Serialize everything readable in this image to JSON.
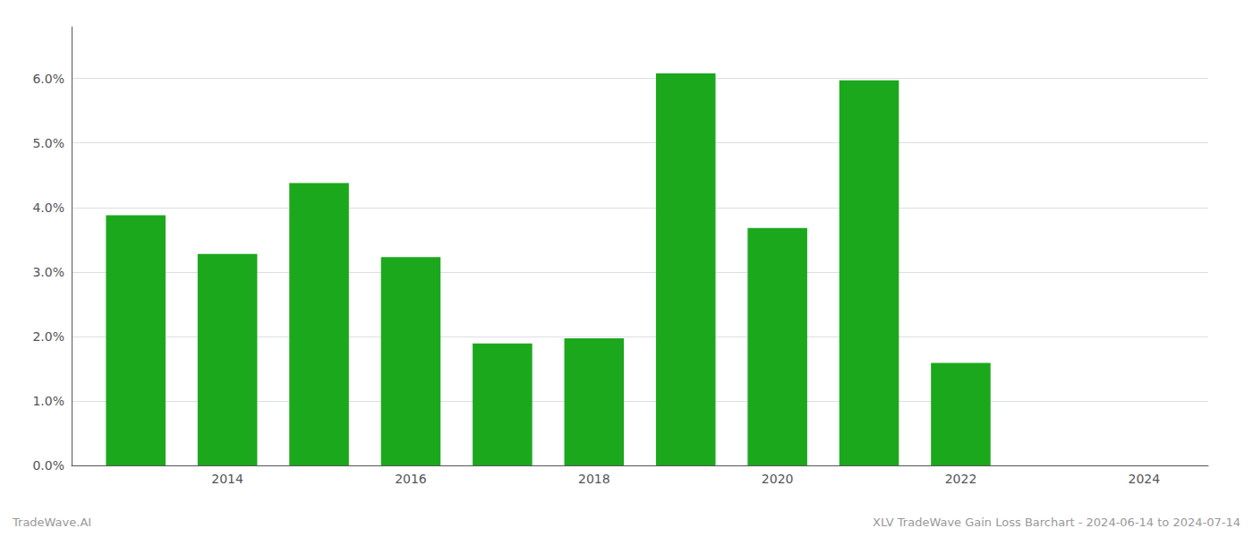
{
  "chart_data": {
    "type": "bar",
    "x": [
      2013,
      2014,
      2015,
      2016,
      2017,
      2018,
      2019,
      2020,
      2021,
      2022
    ],
    "values": [
      0.0388,
      0.0328,
      0.0438,
      0.0323,
      0.0189,
      0.0197,
      0.0608,
      0.0368,
      0.0597,
      0.0159
    ],
    "color": "#1ca81c",
    "xlim": [
      2012.3,
      2024.7
    ],
    "xticks": [
      2014,
      2016,
      2018,
      2020,
      2022,
      2024
    ],
    "ylim": [
      0.0,
      0.068
    ],
    "yticks": [
      {
        "value": 0.0,
        "label": "0.0%"
      },
      {
        "value": 0.01,
        "label": "1.0%"
      },
      {
        "value": 0.02,
        "label": "2.0%"
      },
      {
        "value": 0.03,
        "label": "3.0%"
      },
      {
        "value": 0.04,
        "label": "4.0%"
      },
      {
        "value": 0.05,
        "label": "5.0%"
      },
      {
        "value": 0.06,
        "label": "6.0%"
      }
    ],
    "grid": true,
    "annotations": [
      "TradeWave.AI",
      "XLV TradeWave Gain Loss Barchart - 2024-06-14 to 2024-07-14"
    ]
  }
}
